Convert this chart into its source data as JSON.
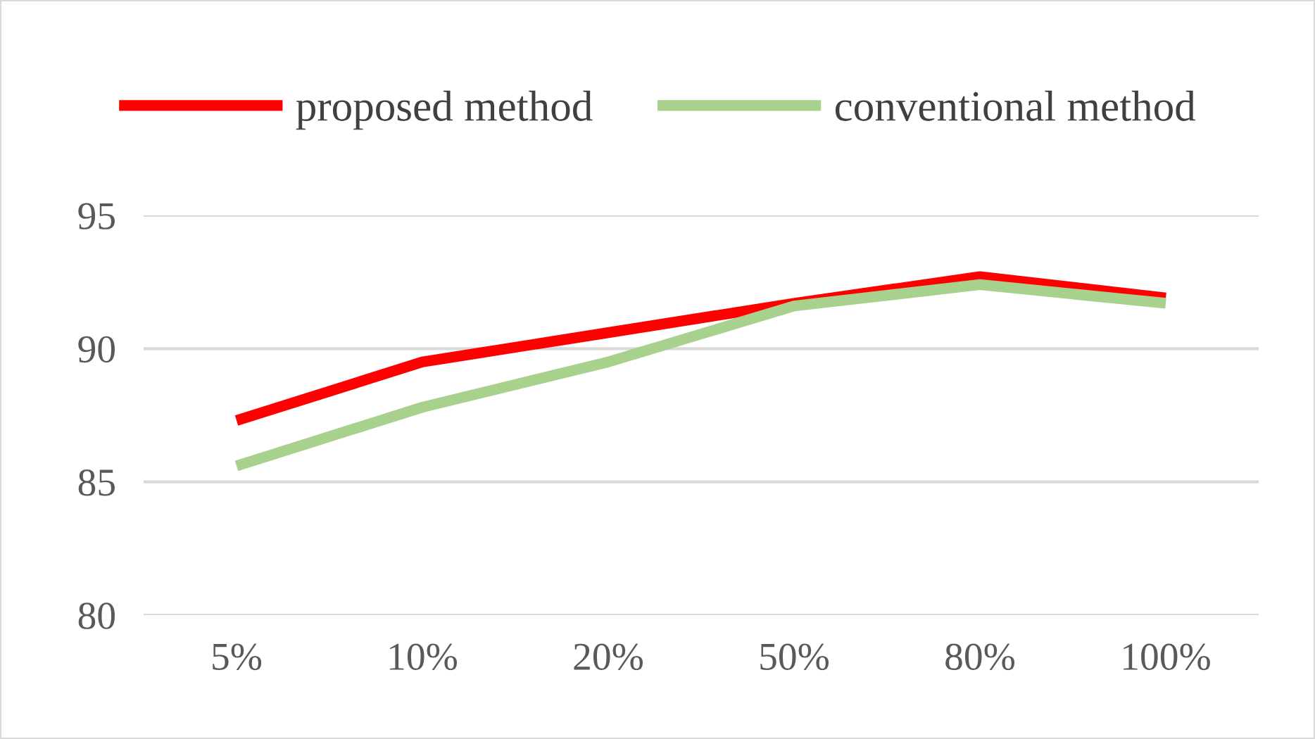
{
  "chart_data": {
    "type": "line",
    "categories": [
      "5%",
      "10%",
      "20%",
      "50%",
      "80%",
      "100%"
    ],
    "series": [
      {
        "name": "proposed method",
        "color": "#ff0000",
        "values": [
          87.3,
          89.5,
          90.6,
          91.7,
          92.7,
          91.9
        ]
      },
      {
        "name": "conventional method",
        "color": "#a9d18e",
        "values": [
          85.6,
          87.8,
          89.5,
          91.6,
          92.4,
          91.7
        ]
      }
    ],
    "ylim": [
      80,
      95
    ],
    "yticks": [
      80,
      85,
      90,
      95
    ],
    "grid": "y",
    "legend": "top",
    "marker": "none",
    "line_style": "solid"
  }
}
